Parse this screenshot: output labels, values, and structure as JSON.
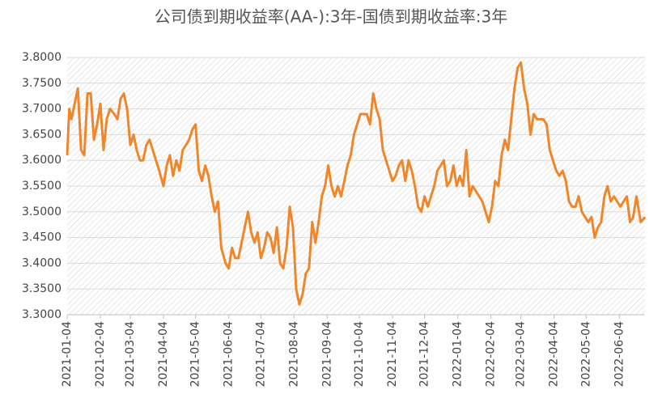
{
  "chart_data": {
    "type": "line",
    "title": "公司债到期收益率(AA-):3年-国债到期收益率:3年",
    "color": "#f0862a",
    "grid": true,
    "hatched_background": true,
    "x": [
      "2021-01-04",
      "2021-01-06",
      "2021-01-08",
      "2021-01-14",
      "2021-01-17",
      "2021-01-20",
      "2021-01-23",
      "2021-01-26",
      "2021-01-29",
      "2021-02-01",
      "2021-02-04",
      "2021-02-07",
      "2021-02-10",
      "2021-02-13",
      "2021-02-17",
      "2021-02-20",
      "2021-02-23",
      "2021-02-26",
      "2021-03-01",
      "2021-03-04",
      "2021-03-07",
      "2021-03-10",
      "2021-03-13",
      "2021-03-16",
      "2021-03-19",
      "2021-03-22",
      "2021-03-25",
      "2021-03-28",
      "2021-03-31",
      "2021-04-04",
      "2021-04-07",
      "2021-04-10",
      "2021-04-13",
      "2021-04-16",
      "2021-04-19",
      "2021-04-22",
      "2021-04-25",
      "2021-04-28",
      "2021-05-01",
      "2021-05-04",
      "2021-05-07",
      "2021-05-10",
      "2021-05-13",
      "2021-05-16",
      "2021-05-19",
      "2021-05-22",
      "2021-05-25",
      "2021-05-28",
      "2021-06-01",
      "2021-06-04",
      "2021-06-07",
      "2021-06-10",
      "2021-06-13",
      "2021-06-16",
      "2021-06-19",
      "2021-06-22",
      "2021-06-25",
      "2021-06-28",
      "2021-07-01",
      "2021-07-04",
      "2021-07-07",
      "2021-07-10",
      "2021-07-13",
      "2021-07-16",
      "2021-07-19",
      "2021-07-22",
      "2021-07-25",
      "2021-07-28",
      "2021-07-31",
      "2021-08-03",
      "2021-08-06",
      "2021-08-09",
      "2021-08-12",
      "2021-08-15",
      "2021-08-18",
      "2021-08-21",
      "2021-08-24",
      "2021-08-27",
      "2021-08-30",
      "2021-09-02",
      "2021-09-05",
      "2021-09-08",
      "2021-09-11",
      "2021-09-14",
      "2021-09-17",
      "2021-09-20",
      "2021-09-23",
      "2021-09-26",
      "2021-09-29",
      "2021-10-02",
      "2021-10-05",
      "2021-10-08",
      "2021-10-11",
      "2021-10-14",
      "2021-10-17",
      "2021-10-20",
      "2021-10-23",
      "2021-10-26",
      "2021-10-29",
      "2021-11-01",
      "2021-11-04",
      "2021-11-07",
      "2021-11-10",
      "2021-11-13",
      "2021-11-16",
      "2021-11-19",
      "2021-11-22",
      "2021-11-25",
      "2021-11-28",
      "2021-12-01",
      "2021-12-04",
      "2021-12-07",
      "2021-12-10",
      "2021-12-13",
      "2021-12-16",
      "2021-12-19",
      "2021-12-22",
      "2021-12-25",
      "2021-12-28",
      "2021-12-31",
      "2022-01-03",
      "2022-01-06",
      "2022-01-09",
      "2022-01-12",
      "2022-01-15",
      "2022-01-18",
      "2022-01-21",
      "2022-01-24",
      "2022-01-27",
      "2022-01-30",
      "2022-02-02",
      "2022-02-05",
      "2022-02-08",
      "2022-02-11",
      "2022-02-14",
      "2022-02-17",
      "2022-02-20",
      "2022-02-23",
      "2022-02-26",
      "2022-03-01",
      "2022-03-04",
      "2022-03-07",
      "2022-03-10",
      "2022-03-13",
      "2022-03-16",
      "2022-03-19",
      "2022-03-22",
      "2022-03-25",
      "2022-03-28",
      "2022-03-31",
      "2022-04-03",
      "2022-04-06",
      "2022-04-09",
      "2022-04-12",
      "2022-04-15",
      "2022-04-18",
      "2022-04-21",
      "2022-04-24",
      "2022-04-27",
      "2022-04-30",
      "2022-05-03",
      "2022-05-06",
      "2022-05-09",
      "2022-05-12",
      "2022-05-15",
      "2022-05-18",
      "2022-05-21",
      "2022-05-24",
      "2022-05-27",
      "2022-05-30",
      "2022-06-02",
      "2022-06-05",
      "2022-06-08",
      "2022-06-11",
      "2022-06-14",
      "2022-06-17",
      "2022-06-20",
      "2022-06-24",
      "2022-06-28"
    ],
    "values": [
      3.61,
      3.7,
      3.68,
      3.74,
      3.62,
      3.61,
      3.73,
      3.73,
      3.64,
      3.67,
      3.71,
      3.62,
      3.68,
      3.7,
      3.69,
      3.68,
      3.72,
      3.73,
      3.7,
      3.63,
      3.65,
      3.62,
      3.6,
      3.6,
      3.63,
      3.64,
      3.62,
      3.6,
      3.58,
      3.55,
      3.59,
      3.61,
      3.57,
      3.6,
      3.58,
      3.62,
      3.63,
      3.64,
      3.66,
      3.67,
      3.58,
      3.56,
      3.59,
      3.57,
      3.53,
      3.5,
      3.52,
      3.43,
      3.4,
      3.39,
      3.43,
      3.41,
      3.41,
      3.44,
      3.47,
      3.5,
      3.46,
      3.44,
      3.46,
      3.41,
      3.43,
      3.46,
      3.45,
      3.42,
      3.47,
      3.4,
      3.39,
      3.43,
      3.51,
      3.47,
      3.35,
      3.32,
      3.34,
      3.38,
      3.39,
      3.48,
      3.44,
      3.48,
      3.53,
      3.55,
      3.59,
      3.55,
      3.53,
      3.55,
      3.53,
      3.56,
      3.59,
      3.61,
      3.65,
      3.67,
      3.69,
      3.69,
      3.69,
      3.67,
      3.73,
      3.7,
      3.68,
      3.62,
      3.6,
      3.58,
      3.56,
      3.57,
      3.59,
      3.6,
      3.56,
      3.6,
      3.58,
      3.55,
      3.51,
      3.5,
      3.53,
      3.51,
      3.53,
      3.55,
      3.58,
      3.59,
      3.6,
      3.55,
      3.56,
      3.59,
      3.55,
      3.57,
      3.55,
      3.62,
      3.53,
      3.55,
      3.54,
      3.53,
      3.52,
      3.5,
      3.48,
      3.51,
      3.56,
      3.55,
      3.61,
      3.64,
      3.62,
      3.68,
      3.74,
      3.78,
      3.79,
      3.74,
      3.71,
      3.65,
      3.69,
      3.68,
      3.68,
      3.68,
      3.67,
      3.62,
      3.6,
      3.58,
      3.57,
      3.58,
      3.56,
      3.52,
      3.51,
      3.51,
      3.53,
      3.5,
      3.49,
      3.48,
      3.49,
      3.45,
      3.47,
      3.48,
      3.53,
      3.55,
      3.52,
      3.53,
      3.52,
      3.51,
      3.52,
      3.53,
      3.48,
      3.49,
      3.53,
      3.48,
      3.49
    ],
    "xlim": [
      "2021-01-04",
      "2022-06-28"
    ],
    "xticks": [
      "2021-01-04",
      "2021-02-04",
      "2021-03-04",
      "2021-04-04",
      "2021-05-04",
      "2021-06-04",
      "2021-07-04",
      "2021-08-04",
      "2021-09-04",
      "2021-10-04",
      "2021-11-04",
      "2021-12-04",
      "2022-01-04",
      "2022-02-04",
      "2022-03-04",
      "2022-04-04",
      "2022-05-04",
      "2022-06-04"
    ],
    "ylim": [
      3.3,
      3.8
    ],
    "yticks": [
      {
        "value": 3.3,
        "label": "3.3000"
      },
      {
        "value": 3.35,
        "label": "3.3500"
      },
      {
        "value": 3.4,
        "label": "3.4000"
      },
      {
        "value": 3.45,
        "label": "3.4500"
      },
      {
        "value": 3.5,
        "label": "3.5000"
      },
      {
        "value": 3.55,
        "label": "3.5500"
      },
      {
        "value": 3.6,
        "label": "3.6000"
      },
      {
        "value": 3.65,
        "label": "3.6500"
      },
      {
        "value": 3.7,
        "label": "3.7000"
      },
      {
        "value": 3.75,
        "label": "3.7500"
      },
      {
        "value": 3.8,
        "label": "3.8000"
      }
    ]
  }
}
